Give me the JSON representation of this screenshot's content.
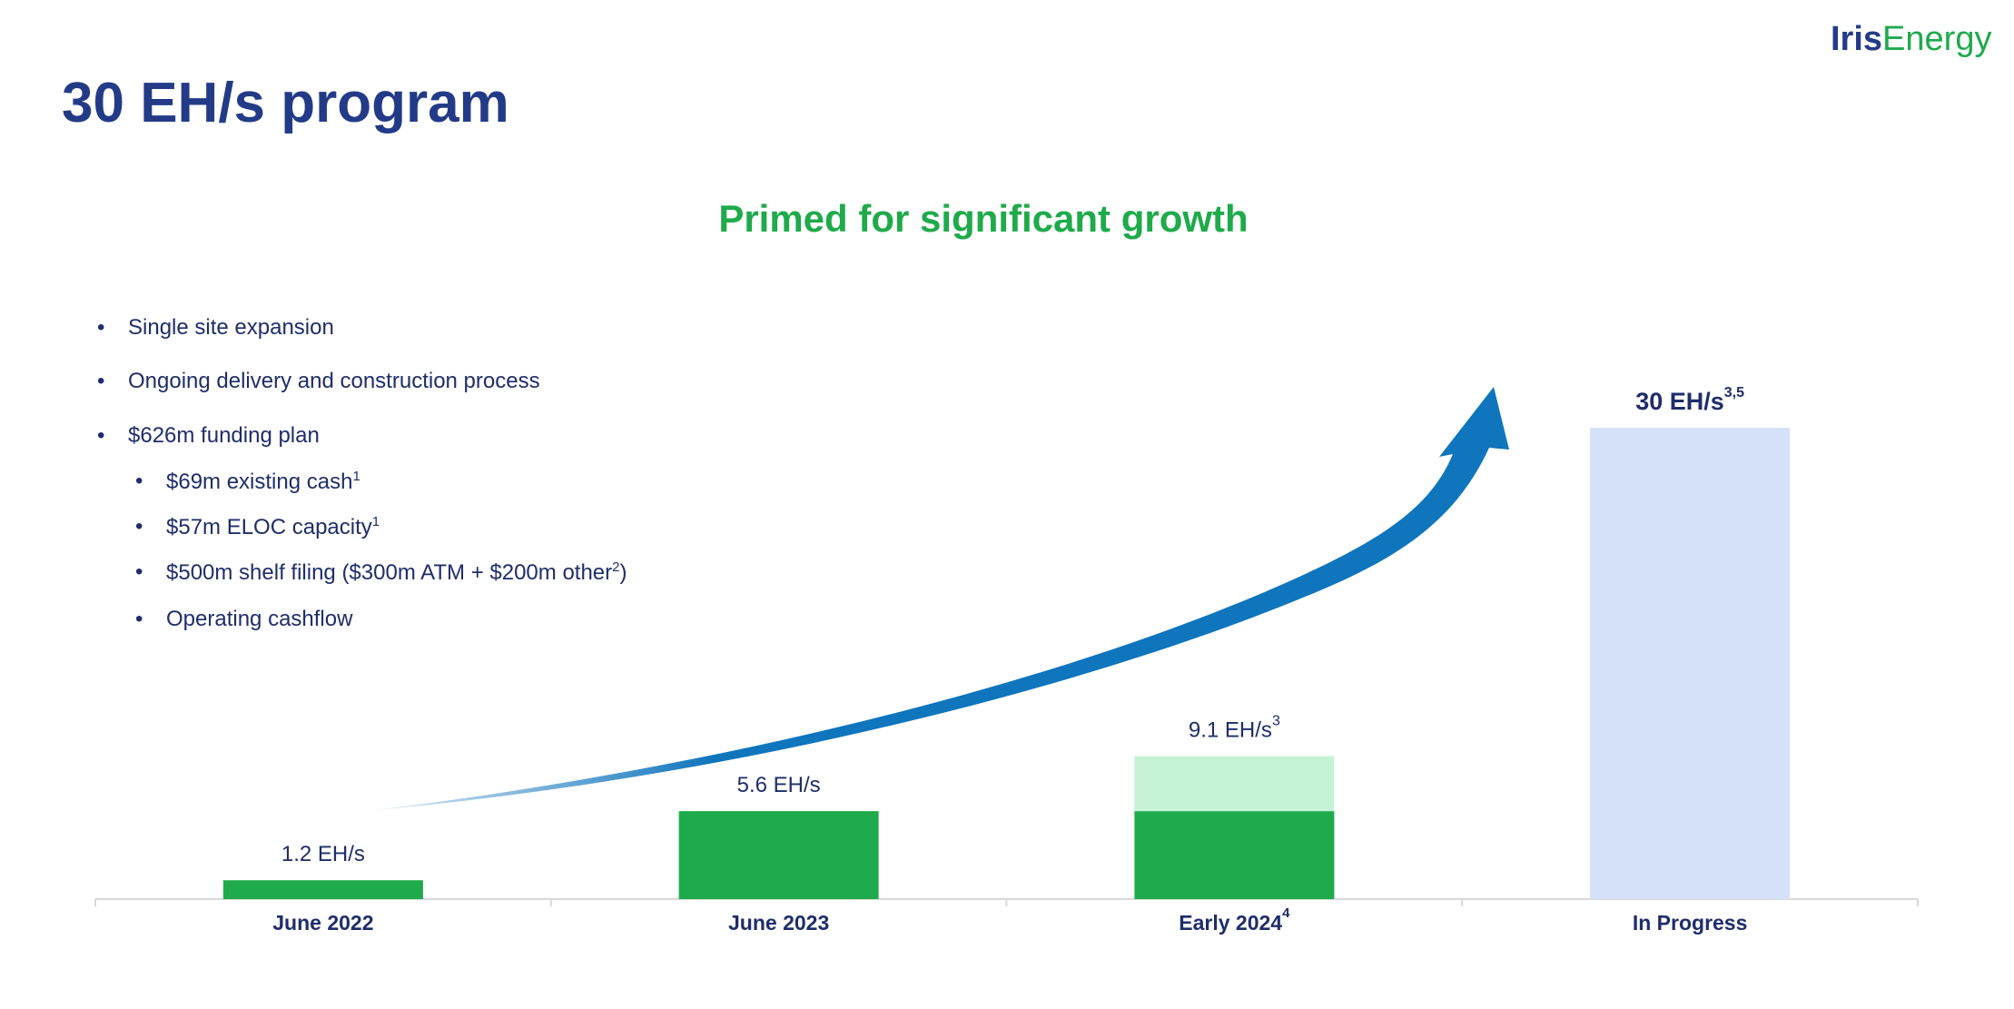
{
  "header": {
    "title": "30 EH/s program",
    "logo": [
      "Iris",
      "Energy"
    ]
  },
  "bullets": [
    {
      "text": "Single site expansion"
    },
    {
      "text": "Ongoing delivery and construction process"
    },
    {
      "text": "$626m funding plan",
      "items": [
        {
          "parts": [
            "$69m existing cash",
            "1"
          ]
        },
        {
          "parts": [
            "$57m ELOC capacity",
            "1"
          ]
        },
        {
          "parts": [
            "$500m shelf filing ($300m ATM + $200m other",
            "2",
            ")"
          ]
        },
        {
          "parts": [
            "Operating cashflow"
          ]
        }
      ]
    }
  ],
  "chart_data": {
    "type": "bar",
    "stacked": true,
    "title": "Primed for significant growth",
    "categories": [
      {
        "text": "June 2022"
      },
      {
        "text": "June 2023"
      },
      {
        "text": "Early 2024",
        "note": "4"
      },
      {
        "text": "In Progress"
      }
    ],
    "series": [
      {
        "color": "#1faa4b",
        "values": [
          1.2,
          5.6,
          5.6,
          null
        ]
      },
      {
        "color": "#c6f2d6",
        "values": [
          null,
          null,
          3.5,
          null
        ]
      },
      {
        "color": "#d6e1fa",
        "values": [
          null,
          null,
          null,
          30
        ]
      }
    ],
    "total_labels": [
      {
        "text": "1.2 EH/s"
      },
      {
        "text": "5.6 EH/s"
      },
      {
        "text": "9.1 EH/s",
        "note": "3"
      },
      {
        "text": "30 EH/s",
        "note": "3,5",
        "bold": true
      }
    ]
  }
}
